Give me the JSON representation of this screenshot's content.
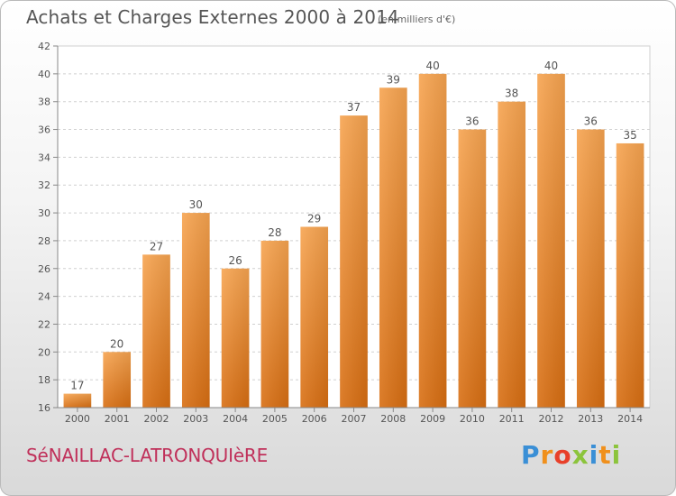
{
  "chart_data": {
    "type": "bar",
    "title": "Achats et Charges Externes 2000 à 2014",
    "subtitle": "(en milliers d'€)",
    "categories": [
      "2000",
      "2001",
      "2002",
      "2003",
      "2004",
      "2005",
      "2006",
      "2007",
      "2008",
      "2009",
      "2010",
      "2011",
      "2012",
      "2013",
      "2014"
    ],
    "values": [
      17,
      20,
      27,
      30,
      26,
      28,
      29,
      37,
      39,
      40,
      36,
      38,
      40,
      36,
      35
    ],
    "ylim": [
      16,
      42
    ],
    "yticks": [
      16,
      18,
      20,
      22,
      24,
      26,
      28,
      30,
      32,
      34,
      36,
      38,
      40,
      42
    ],
    "grid": true,
    "bar_color": "#f0882c",
    "xlabel": "",
    "ylabel": ""
  },
  "footer": {
    "commune": "SéNAILLAC-LATRONQUIèRE",
    "brand_letters": [
      "P",
      "r",
      "o",
      "x",
      "i",
      "t",
      "i"
    ],
    "brand_colors": [
      "#3a8fd6",
      "#f0901c",
      "#e8402a",
      "#8cc43c",
      "#3a8fd6",
      "#f0901c",
      "#8cc43c"
    ]
  }
}
